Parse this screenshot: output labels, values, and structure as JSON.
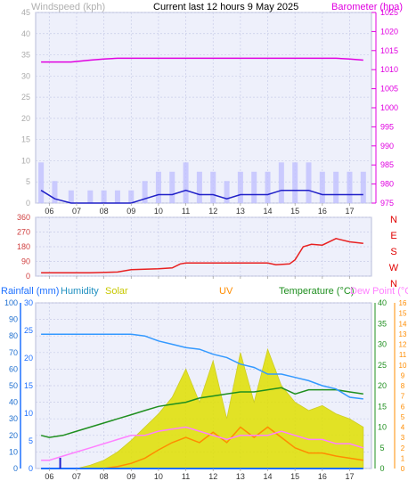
{
  "header": {
    "left_label": "Windspeed (kph)",
    "title": "Current last 12 hours 9 May 2025",
    "right_label": "Barometer (hpa)"
  },
  "colors": {
    "plot_bg": "#eef0fb",
    "grid": "#c8cce8",
    "windspeed_avg": "#2020c8",
    "gust": "#c0c0ff",
    "barometer": "#e000e0",
    "direction": "#e82020",
    "rain": "#1e70ff",
    "humidity": "#3399ff",
    "solar": "#e0e000",
    "uv": "#ff8c00",
    "temperature": "#1f8f1f",
    "dewpoint": "#ff80ff",
    "left_axis_text": "#aaaaaa",
    "dir_letters": "#e00000"
  },
  "legend": {
    "rainfall": "Rainfall (mm)",
    "humidity": "Humidity",
    "solar": "Solar",
    "uv": "UV",
    "temperature": "Temperature (°C)",
    "dewpoint": "Dew Point (°C"
  },
  "x_hours": [
    "06",
    "07",
    "08",
    "09",
    "10",
    "11",
    "12",
    "13",
    "14",
    "15",
    "16",
    "17"
  ],
  "chart_data": [
    {
      "type": "line",
      "title": "Current last 12 hours 9 May 2025",
      "y_left_label": "Windspeed (kph)",
      "y_left_ticks": [
        0,
        5,
        10,
        15,
        20,
        25,
        30,
        35,
        40,
        45
      ],
      "y_right_label": "Barometer (hpa)",
      "y_right_ticks": [
        975,
        980,
        985,
        990,
        995,
        1000,
        1005,
        1010,
        1015,
        1020,
        1025
      ],
      "ylim_left": [
        0,
        45
      ],
      "ylim_right": [
        975,
        1025
      ],
      "x_hours": [
        5.7,
        6.2,
        6.8,
        7.5,
        8.0,
        8.5,
        9.0,
        9.5,
        10.0,
        10.5,
        11.0,
        11.5,
        12.0,
        12.5,
        13.0,
        13.5,
        14.0,
        14.5,
        15.0,
        15.5,
        16.0,
        16.5,
        17.0,
        17.5
      ],
      "series": [
        {
          "name": "Windspeed (kph)",
          "values": [
            3,
            1,
            0,
            0,
            0,
            0,
            0,
            1,
            2,
            2,
            3,
            2,
            2,
            1,
            2,
            2,
            2,
            3,
            3,
            3,
            2,
            2,
            2,
            2
          ]
        },
        {
          "name": "Barometer (hpa)",
          "values": [
            1012,
            1012,
            1012,
            1012.5,
            1012.8,
            1013,
            1013,
            1013,
            1013,
            1013,
            1013,
            1013,
            1013,
            1013,
            1013,
            1013,
            1013,
            1013,
            1013,
            1013,
            1013,
            1013,
            1012.8,
            1012.5
          ]
        }
      ]
    },
    {
      "type": "line",
      "y_ticks": [
        0,
        90,
        180,
        270,
        360
      ],
      "y_tick_labels": [
        "0",
        "90",
        "180",
        "270",
        "360"
      ],
      "right_labels": [
        "N",
        "W",
        "S",
        "E",
        "N"
      ],
      "ylim": [
        0,
        360
      ],
      "x_hours": [
        5.7,
        6.5,
        7.5,
        8.5,
        9.0,
        9.5,
        10.0,
        10.5,
        10.8,
        11.0,
        12.0,
        13.0,
        14.0,
        14.3,
        14.8,
        15.0,
        15.3,
        15.6,
        16.0,
        16.5,
        17.0,
        17.5
      ],
      "series": [
        {
          "name": "direction",
          "values": [
            20,
            20,
            20,
            25,
            40,
            42,
            45,
            50,
            75,
            80,
            80,
            80,
            80,
            70,
            75,
            100,
            180,
            195,
            190,
            230,
            210,
            200
          ]
        }
      ]
    },
    {
      "type": "line",
      "y_rain_ticks": [
        0,
        5,
        10,
        15,
        20,
        25,
        30
      ],
      "y_hum_ticks": [
        0,
        10,
        20,
        30,
        40,
        50,
        60,
        70,
        80,
        90,
        100
      ],
      "y_temp_ticks": [
        0,
        5,
        10,
        15,
        20,
        25,
        30,
        35,
        40
      ],
      "y_uv_ticks": [
        0,
        1,
        2,
        3,
        4,
        5,
        6,
        7,
        8,
        9,
        10,
        11,
        12,
        13,
        14,
        15,
        16
      ],
      "ylim_humidity": [
        0,
        100
      ],
      "ylim_temperature": [
        0,
        40
      ],
      "ylim_uv": [
        0,
        16
      ],
      "ylim_rain": [
        0,
        30
      ],
      "x_hours": [
        5.7,
        6.0,
        6.5,
        7.0,
        7.5,
        8.0,
        8.5,
        9.0,
        9.5,
        10.0,
        10.5,
        11.0,
        11.5,
        12.0,
        12.5,
        13.0,
        13.5,
        14.0,
        14.5,
        15.0,
        15.5,
        16.0,
        16.5,
        17.0,
        17.5
      ],
      "series": [
        {
          "name": "Humidity",
          "values": [
            81,
            81,
            81,
            81,
            81,
            81,
            81,
            81,
            80,
            77,
            75,
            73,
            72,
            69,
            67,
            63,
            61,
            57,
            57,
            55,
            53,
            50,
            48,
            43,
            42
          ]
        },
        {
          "name": "Temperature (°C)",
          "values": [
            8,
            7.5,
            8,
            9,
            10,
            11,
            12,
            13,
            14,
            15,
            15.5,
            16,
            17,
            17.5,
            18,
            18.5,
            18.5,
            19,
            19.5,
            18,
            19,
            19,
            19,
            18.5,
            18
          ]
        },
        {
          "name": "Dew Point (°C",
          "values": [
            2,
            2,
            3,
            4,
            5,
            6,
            7,
            8,
            8,
            9,
            9.5,
            10,
            9,
            8,
            7,
            8,
            8,
            8,
            9,
            8,
            7,
            7,
            6,
            6,
            5
          ]
        },
        {
          "name": "Solar",
          "values": [
            0,
            0,
            0,
            0,
            20,
            50,
            100,
            170,
            250,
            330,
            430,
            600,
            400,
            650,
            300,
            700,
            400,
            720,
            500,
            400,
            350,
            380,
            330,
            300,
            250
          ]
        },
        {
          "name": "UV",
          "values": [
            0,
            0,
            0,
            0,
            0,
            0,
            0.2,
            0.5,
            1,
            1.8,
            2.5,
            3,
            2.5,
            3.5,
            2.5,
            4,
            3,
            4,
            3,
            2,
            1.5,
            1.5,
            1.2,
            1,
            0.8
          ]
        },
        {
          "name": "Rainfall (mm)",
          "values": [
            0,
            0,
            0,
            0,
            0,
            0,
            0,
            0,
            0,
            0,
            0,
            0,
            0,
            0,
            0,
            0,
            0,
            0,
            0,
            0,
            0,
            0,
            0,
            0,
            0
          ]
        }
      ]
    }
  ]
}
